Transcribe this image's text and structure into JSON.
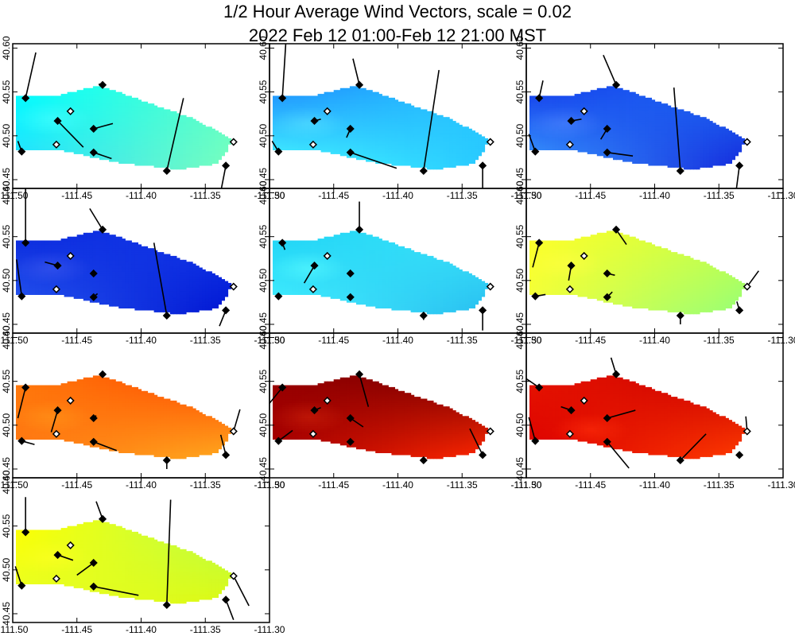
{
  "figure": {
    "title_line1": "1/2 Hour Average Wind Vectors, scale =  0.02",
    "title_line2": "2022 Feb 12 01:00-Feb 12 21:00 MST"
  },
  "chart_data": {
    "type": "vector-field",
    "title": "1/2 Hour Average Wind Vectors, scale =  0.02",
    "subtitle": "2022 Feb 12 01:00-Feb 12 21:00 MST",
    "xlim": [
      -111.5,
      -111.3
    ],
    "ylim": [
      40.44,
      40.605
    ],
    "x_ticks": [
      -111.5,
      -111.45,
      -111.4,
      -111.35,
      -111.3
    ],
    "x_tick_labels": [
      "-111.50",
      "-111.45",
      "-111.40",
      "-111.35",
      "-111.30"
    ],
    "y_ticks": [
      40.45,
      40.5,
      40.55,
      40.6
    ],
    "y_tick_labels": [
      "40.45",
      "40.50",
      "40.55",
      "40.60"
    ],
    "domain_polygon": [
      [
        -111.497,
        40.545
      ],
      [
        -111.465,
        40.546
      ],
      [
        -111.437,
        40.556
      ],
      [
        -111.43,
        40.558
      ],
      [
        -111.43,
        40.556
      ],
      [
        -111.36,
        40.52
      ],
      [
        -111.33,
        40.497
      ],
      [
        -111.333,
        40.482
      ],
      [
        -111.342,
        40.468
      ],
      [
        -111.37,
        40.462
      ],
      [
        -111.42,
        40.47
      ],
      [
        -111.46,
        40.483
      ],
      [
        -111.497,
        40.483
      ]
    ],
    "stations": [
      {
        "lon": -111.49,
        "lat": 40.543,
        "filled": true
      },
      {
        "lon": -111.493,
        "lat": 40.482,
        "filled": true
      },
      {
        "lon": -111.465,
        "lat": 40.517,
        "filled": true
      },
      {
        "lon": -111.466,
        "lat": 40.49,
        "filled": false
      },
      {
        "lon": -111.455,
        "lat": 40.528,
        "filled": false
      },
      {
        "lon": -111.437,
        "lat": 40.508,
        "filled": true
      },
      {
        "lon": -111.437,
        "lat": 40.481,
        "filled": true
      },
      {
        "lon": -111.43,
        "lat": 40.558,
        "filled": true
      },
      {
        "lon": -111.38,
        "lat": 40.46,
        "filled": true
      },
      {
        "lon": -111.334,
        "lat": 40.466,
        "filled": true
      },
      {
        "lon": -111.328,
        "lat": 40.493,
        "filled": false
      }
    ],
    "panels": [
      {
        "hotspot": [
          -111.47,
          40.52
        ],
        "ramp": [
          [
            [
              0,
              255,
              255
            ],
            [
              90,
              255,
              200
            ]
          ],
          [
            [
              40,
              220,
              255
            ],
            [
              120,
              255,
              190
            ]
          ]
        ],
        "vectors": [
          [
            0,
            0.008,
            0.052
          ],
          [
            1,
            -0.003,
            0.012
          ],
          [
            2,
            0.02,
            -0.03
          ],
          [
            3,
            0.0,
            0.0
          ],
          [
            4,
            0.0,
            0.0
          ],
          [
            5,
            0.015,
            0.006
          ],
          [
            6,
            0.014,
            -0.007
          ],
          [
            7,
            -0.003,
            0.001
          ],
          [
            8,
            0.013,
            0.083
          ],
          [
            9,
            -0.004,
            -0.03
          ],
          [
            10,
            0.0,
            0.0
          ]
        ]
      },
      {
        "hotspot": [
          -111.47,
          40.515
        ],
        "ramp": [
          [
            [
              30,
              140,
              255
            ],
            [
              40,
              200,
              255
            ]
          ],
          [
            [
              70,
              255,
              255
            ],
            [
              40,
              200,
              255
            ]
          ]
        ],
        "vectors": [
          [
            0,
            0.003,
            0.07
          ],
          [
            1,
            -0.005,
            0.012
          ],
          [
            2,
            0.005,
            0.002
          ],
          [
            3,
            0.0,
            0.0
          ],
          [
            4,
            0.0,
            0.0
          ],
          [
            5,
            -0.003,
            -0.01
          ],
          [
            6,
            0.036,
            -0.018
          ],
          [
            7,
            -0.005,
            0.03
          ],
          [
            8,
            0.012,
            0.115
          ],
          [
            9,
            0.0,
            -0.03
          ],
          [
            10,
            0.0,
            0.0
          ]
        ]
      },
      {
        "hotspot": [
          -111.47,
          40.515
        ],
        "ramp": [
          [
            [
              20,
              60,
              235
            ],
            [
              30,
              110,
              245
            ]
          ],
          [
            [
              60,
              160,
              255
            ],
            [
              20,
              40,
              220
            ]
          ]
        ],
        "vectors": [
          [
            0,
            0.003,
            0.02
          ],
          [
            1,
            -0.005,
            0.02
          ],
          [
            2,
            0.008,
            0.002
          ],
          [
            3,
            0.0,
            0.0
          ],
          [
            4,
            0.0,
            0.0
          ],
          [
            5,
            -0.005,
            -0.012
          ],
          [
            6,
            0.02,
            -0.004
          ],
          [
            7,
            -0.01,
            0.034
          ],
          [
            8,
            -0.005,
            0.095
          ],
          [
            9,
            -0.003,
            -0.034
          ],
          [
            10,
            0.0,
            0.0
          ]
        ]
      },
      {
        "hotspot": [
          -111.47,
          40.515
        ],
        "ramp": [
          [
            [
              10,
              40,
              220
            ],
            [
              20,
              60,
              235
            ]
          ],
          [
            [
              40,
              90,
              240
            ],
            [
              0,
              20,
              210
            ]
          ]
        ],
        "vectors": [
          [
            0,
            0.0,
            0.07
          ],
          [
            1,
            -0.004,
            0.042
          ],
          [
            2,
            -0.01,
            0.004
          ],
          [
            3,
            0.0,
            0.0
          ],
          [
            4,
            0.0,
            0.0
          ],
          [
            5,
            0.0,
            0.0
          ],
          [
            6,
            0.003,
            0.004
          ],
          [
            7,
            -0.01,
            0.024
          ],
          [
            8,
            -0.01,
            0.083
          ],
          [
            9,
            -0.005,
            -0.018
          ],
          [
            10,
            0.0,
            0.0
          ]
        ]
      },
      {
        "hotspot": [
          -111.47,
          40.515
        ],
        "ramp": [
          [
            [
              30,
              210,
              245
            ],
            [
              60,
              230,
              250
            ]
          ],
          [
            [
              70,
              240,
              255
            ],
            [
              40,
              190,
              240
            ]
          ]
        ],
        "vectors": [
          [
            0,
            0.002,
            -0.008
          ],
          [
            1,
            0.0,
            0.0
          ],
          [
            2,
            -0.008,
            -0.02
          ],
          [
            3,
            0.0,
            0.0
          ],
          [
            4,
            0.0,
            0.0
          ],
          [
            5,
            0.0,
            0.0
          ],
          [
            6,
            0.0,
            -0.003
          ],
          [
            7,
            0.0,
            0.032
          ],
          [
            8,
            0.0,
            -0.005
          ],
          [
            9,
            0.0,
            -0.023
          ],
          [
            10,
            0.0,
            0.0
          ]
        ]
      },
      {
        "hotspot": [
          -111.47,
          40.52
        ],
        "ramp": [
          [
            [
              255,
              255,
              40
            ],
            [
              200,
              255,
              70
            ]
          ],
          [
            [
              240,
              255,
              60
            ],
            [
              150,
              255,
              120
            ]
          ]
        ],
        "vectors": [
          [
            0,
            -0.005,
            -0.028
          ],
          [
            1,
            0.008,
            0.002
          ],
          [
            2,
            -0.002,
            -0.017
          ],
          [
            3,
            0.0,
            0.0
          ],
          [
            4,
            0.0,
            0.0
          ],
          [
            5,
            0.006,
            -0.002
          ],
          [
            6,
            0.004,
            0.006
          ],
          [
            7,
            0.008,
            -0.017
          ],
          [
            8,
            0.0,
            -0.01
          ],
          [
            9,
            -0.002,
            0.01
          ],
          [
            10,
            0.009,
            0.018
          ]
        ]
      },
      {
        "hotspot": [
          -111.47,
          40.51
        ],
        "ramp": [
          [
            [
              255,
              120,
              10
            ],
            [
              255,
              70,
              0
            ]
          ],
          [
            [
              255,
              120,
              20
            ],
            [
              255,
              170,
              30
            ]
          ]
        ],
        "vectors": [
          [
            0,
            -0.006,
            -0.035
          ],
          [
            1,
            0.01,
            -0.004
          ],
          [
            2,
            -0.005,
            -0.025
          ],
          [
            3,
            0.0,
            0.0
          ],
          [
            4,
            0.0,
            0.0
          ],
          [
            5,
            0.002,
            0.003
          ],
          [
            6,
            0.018,
            -0.01
          ],
          [
            7,
            0.0,
            0.0
          ],
          [
            8,
            0.0,
            -0.01
          ],
          [
            9,
            -0.004,
            0.023
          ],
          [
            10,
            0.005,
            0.025
          ]
        ]
      },
      {
        "hotspot": [
          -111.47,
          40.51
        ],
        "ramp": [
          [
            [
              150,
              0,
              0
            ],
            [
              120,
              0,
              0
            ]
          ],
          [
            [
              170,
              0,
              0
            ],
            [
              255,
              40,
              0
            ]
          ]
        ],
        "vectors": [
          [
            0,
            -0.01,
            -0.018
          ],
          [
            1,
            0.011,
            0.012
          ],
          [
            2,
            0.005,
            0.003
          ],
          [
            3,
            0.0,
            0.0
          ],
          [
            4,
            0.0,
            0.0
          ],
          [
            5,
            0.01,
            -0.01
          ],
          [
            6,
            0.0,
            0.0
          ],
          [
            7,
            0.007,
            -0.037
          ],
          [
            8,
            0.0,
            0.0
          ],
          [
            9,
            -0.01,
            0.03
          ],
          [
            10,
            0.0,
            0.0
          ]
        ]
      },
      {
        "hotspot": [
          -111.45,
          40.495
        ],
        "ramp": [
          [
            [
              230,
              20,
              0
            ],
            [
              200,
              0,
              0
            ]
          ],
          [
            [
              220,
              0,
              0
            ],
            [
              255,
              60,
              0
            ]
          ]
        ],
        "vectors": [
          [
            0,
            -0.01,
            0.01
          ],
          [
            1,
            -0.005,
            0.027
          ],
          [
            2,
            -0.008,
            0.004
          ],
          [
            3,
            0.0,
            0.0
          ],
          [
            4,
            0.0,
            0.0
          ],
          [
            5,
            0.022,
            0.009
          ],
          [
            6,
            0.017,
            -0.03
          ],
          [
            7,
            -0.004,
            0.019
          ],
          [
            8,
            0.02,
            0.03
          ],
          [
            9,
            0.0,
            0.0
          ],
          [
            10,
            -0.001,
            0.017
          ]
        ]
      },
      {
        "hotspot": [
          -111.47,
          40.515
        ],
        "ramp": [
          [
            [
              255,
              255,
              0
            ],
            [
              180,
              255,
              80
            ]
          ],
          [
            [
              230,
              255,
              40
            ],
            [
              220,
              250,
              20
            ]
          ]
        ],
        "vectors": [
          [
            0,
            0.0,
            0.04
          ],
          [
            1,
            -0.005,
            0.022
          ],
          [
            2,
            0.012,
            -0.006
          ],
          [
            3,
            0.0,
            0.0
          ],
          [
            4,
            0.0,
            0.0
          ],
          [
            5,
            -0.013,
            -0.014
          ],
          [
            6,
            0.035,
            -0.01
          ],
          [
            7,
            -0.005,
            0.02
          ],
          [
            8,
            0.003,
            0.12
          ],
          [
            9,
            0.006,
            -0.023
          ],
          [
            10,
            0.012,
            -0.034
          ]
        ]
      }
    ]
  }
}
